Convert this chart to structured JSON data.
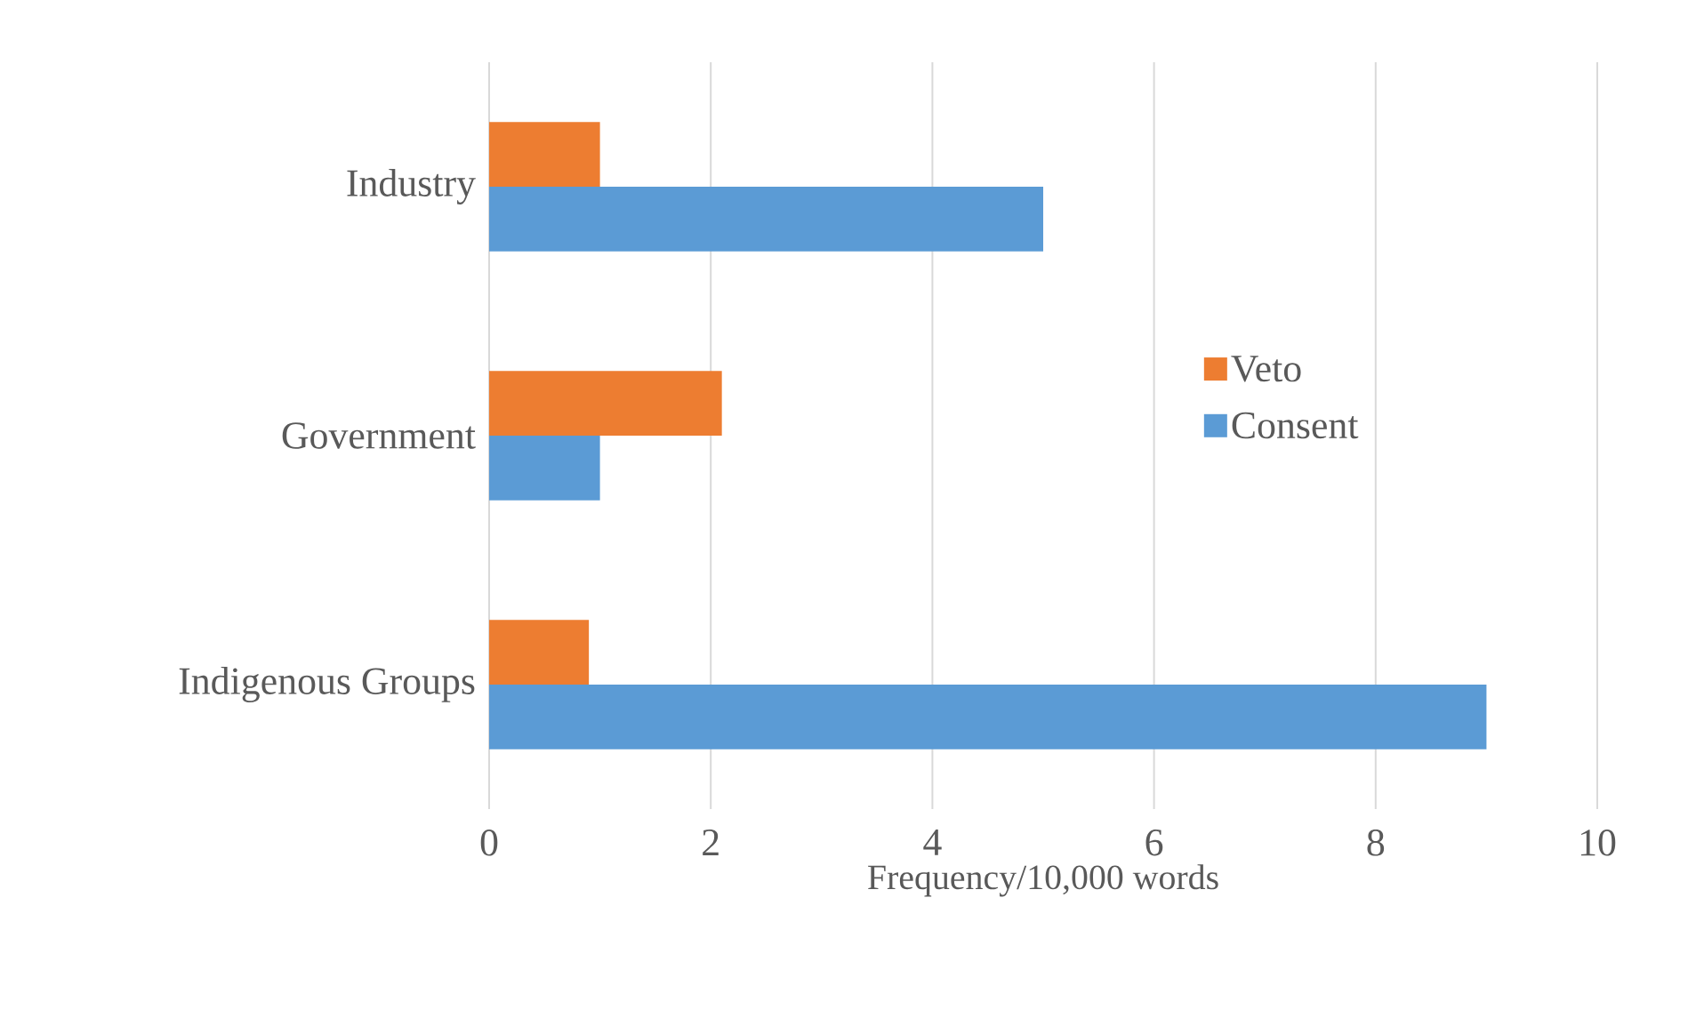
{
  "chart_data": {
    "type": "bar",
    "orientation": "horizontal",
    "xlabel": "Frequency/10,000 words",
    "categories": [
      "Industry",
      "Government",
      "Indigenous Groups"
    ],
    "series": [
      {
        "name": "Veto",
        "color": "#ed7d31",
        "values": [
          1.0,
          2.1,
          0.9
        ]
      },
      {
        "name": "Consent",
        "color": "#5b9bd5",
        "values": [
          5.0,
          1.0,
          9.0
        ]
      }
    ],
    "xlim": [
      0,
      10
    ],
    "xticks": [
      0,
      2,
      4,
      6,
      8,
      10
    ],
    "grid": "x",
    "legend": "right"
  }
}
